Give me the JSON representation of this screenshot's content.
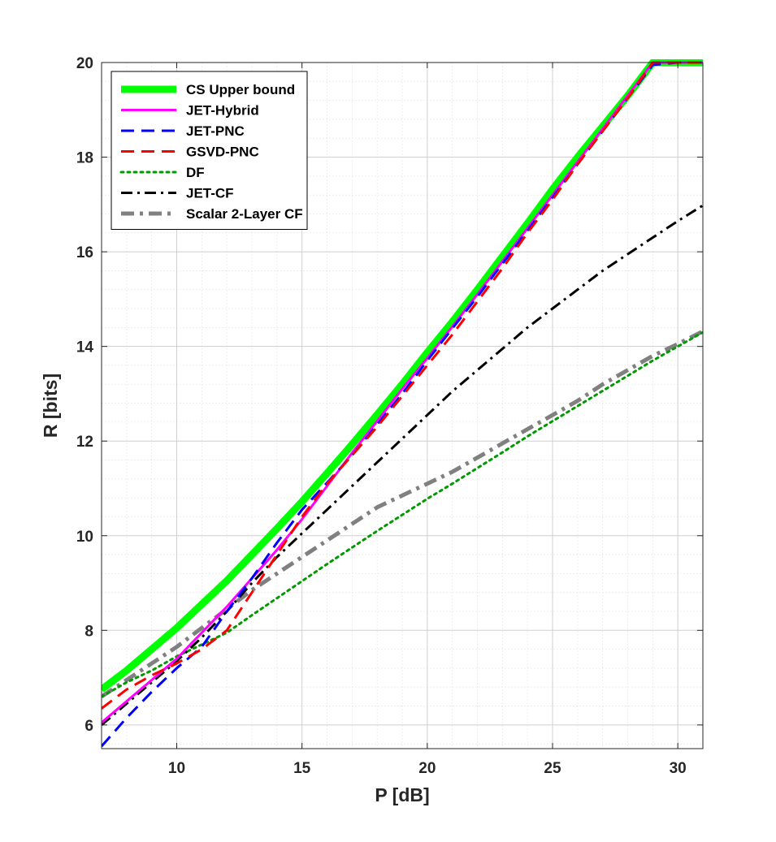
{
  "chart_data": {
    "type": "line",
    "title": "",
    "xlabel": "P [dB]",
    "ylabel": "R [bits]",
    "xlim": [
      7,
      31
    ],
    "ylim": [
      5.5,
      20
    ],
    "xticks": [
      10,
      15,
      20,
      25,
      30
    ],
    "yticks": [
      6,
      8,
      10,
      12,
      14,
      16,
      18,
      20
    ],
    "grid": true,
    "minor_grid": true,
    "legend_location": "top-left",
    "series": [
      {
        "name": "CS Upper bound",
        "color": "#00ff00",
        "style": "solid",
        "width": "thick",
        "x": [
          7,
          8,
          9,
          10,
          11,
          12,
          13,
          14,
          15,
          16,
          17,
          18,
          19,
          20,
          21,
          22,
          23,
          24,
          25,
          26,
          27,
          28,
          29,
          30,
          31
        ],
        "y": [
          6.75,
          7.15,
          7.6,
          8.05,
          8.55,
          9.05,
          9.6,
          10.15,
          10.72,
          11.32,
          11.93,
          12.56,
          13.2,
          13.87,
          14.52,
          15.2,
          15.9,
          16.6,
          17.32,
          18.0,
          18.65,
          19.3,
          20.0,
          20.0,
          20.0
        ]
      },
      {
        "name": "JET-Hybrid",
        "color": "#ff00ff",
        "style": "solid",
        "width": "normal",
        "x": [
          7,
          8,
          9,
          10,
          11,
          12,
          13,
          14,
          15,
          16,
          17,
          18,
          19,
          20,
          21,
          22,
          23,
          24,
          25,
          26,
          27,
          28,
          29,
          30,
          31
        ],
        "y": [
          6.05,
          6.5,
          6.95,
          7.4,
          7.95,
          8.5,
          9.1,
          9.7,
          10.35,
          11.05,
          11.75,
          12.42,
          13.1,
          13.75,
          14.42,
          15.1,
          15.8,
          16.5,
          17.2,
          17.9,
          18.6,
          19.3,
          20.0,
          20.0,
          20.0
        ]
      },
      {
        "name": "JET-PNC",
        "color": "#0000ff",
        "style": "dashed",
        "width": "normal",
        "x": [
          7,
          8,
          9,
          10,
          11,
          12,
          13,
          14,
          15,
          16,
          17,
          18,
          19,
          20,
          21,
          22,
          23,
          24,
          25,
          26,
          27,
          28,
          29,
          30,
          31
        ],
        "y": [
          5.55,
          6.15,
          6.7,
          7.2,
          7.65,
          8.4,
          9.1,
          9.85,
          10.55,
          11.12,
          11.7,
          12.35,
          13.0,
          13.7,
          14.38,
          15.05,
          15.75,
          16.45,
          17.15,
          17.85,
          18.55,
          19.25,
          19.95,
          20.0,
          20.0
        ]
      },
      {
        "name": "GSVD-PNC",
        "color": "#ff0000",
        "style": "dashed",
        "width": "normal",
        "x": [
          7,
          8,
          9,
          10,
          11,
          12,
          13,
          14,
          15,
          16,
          17,
          18,
          19,
          20,
          21,
          22,
          23,
          24,
          25,
          26,
          27,
          28,
          29,
          30,
          31
        ],
        "y": [
          6.35,
          6.75,
          7.05,
          7.3,
          7.6,
          8.0,
          8.8,
          9.6,
          10.4,
          11.1,
          11.7,
          12.3,
          12.95,
          13.6,
          14.25,
          14.95,
          15.65,
          16.4,
          17.1,
          17.85,
          18.55,
          19.25,
          20.0,
          20.0,
          20.0
        ]
      },
      {
        "name": "DF",
        "color": "#009900",
        "style": "dotted",
        "width": "normal",
        "x": [
          7,
          8,
          9,
          10,
          11,
          12,
          13,
          14,
          15,
          16,
          17,
          18,
          19,
          20,
          21,
          22,
          23,
          24,
          25,
          26,
          27,
          28,
          29,
          30,
          31
        ],
        "y": [
          6.6,
          6.9,
          7.15,
          7.45,
          7.7,
          7.95,
          8.32,
          8.68,
          9.04,
          9.4,
          9.75,
          10.1,
          10.44,
          10.78,
          11.1,
          11.43,
          11.76,
          12.1,
          12.42,
          12.74,
          13.06,
          13.38,
          13.7,
          14.0,
          14.3
        ]
      },
      {
        "name": "JET-CF",
        "color": "#000000",
        "style": "dashdot",
        "width": "normal",
        "x": [
          7,
          8,
          9,
          10,
          11,
          12,
          13,
          14,
          15,
          16,
          17,
          18,
          19,
          20,
          21,
          22,
          23,
          24,
          25,
          26,
          27,
          28,
          29,
          30,
          31
        ],
        "y": [
          6.0,
          6.45,
          6.9,
          7.35,
          7.85,
          8.4,
          9.0,
          9.55,
          10.05,
          10.55,
          11.05,
          11.55,
          12.05,
          12.55,
          13.05,
          13.5,
          13.95,
          14.4,
          14.8,
          15.2,
          15.6,
          15.95,
          16.3,
          16.65,
          16.98
        ]
      },
      {
        "name": "Scalar 2-Layer CF",
        "color": "#808080",
        "style": "dashdot",
        "width": "thick",
        "x": [
          7,
          8,
          9,
          10,
          11,
          12,
          13,
          14,
          15,
          16,
          17,
          18,
          19,
          20,
          21,
          22,
          23,
          24,
          25,
          26,
          27,
          28,
          29,
          30,
          31
        ],
        "y": [
          6.6,
          6.95,
          7.3,
          7.65,
          8.05,
          8.45,
          8.85,
          9.2,
          9.55,
          9.9,
          10.25,
          10.6,
          10.85,
          11.1,
          11.35,
          11.65,
          11.95,
          12.25,
          12.55,
          12.85,
          13.2,
          13.5,
          13.8,
          14.05,
          14.32
        ]
      }
    ]
  }
}
